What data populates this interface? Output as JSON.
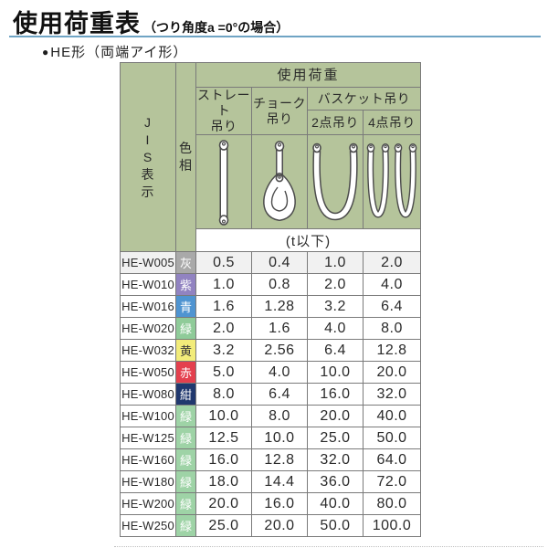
{
  "title": {
    "main": "使用荷重表",
    "sub": "（つり角度a =0°の場合）"
  },
  "section": {
    "bullet": "●",
    "label": "HE形（両端アイ形）"
  },
  "colors": {
    "header_green": "#b5c49b",
    "border_gray": "#7a7a7a",
    "title_rule_blue": "#6fa4c4",
    "first_row_bg": "#f1f1f1"
  },
  "table": {
    "jis_header_chars": [
      "J",
      "I",
      "S",
      "表",
      "示"
    ],
    "color_header_chars": [
      "色",
      "相"
    ],
    "load_header": "使用荷重",
    "sub_headers": {
      "straight_line1": "ストレート",
      "straight_line2": "吊り",
      "choker_line1": "チョーク",
      "choker_line2": "吊り",
      "basket": "バスケット吊り",
      "basket_2pt": "2点吊り",
      "basket_4pt": "4点吊り"
    },
    "unit_row": "(t以下)",
    "icons": [
      "straight-sling-icon",
      "choker-sling-icon",
      "basket-2pt-sling-icon",
      "basket-4pt-sling-icon"
    ],
    "rows": [
      {
        "jis": "HE-W005",
        "color_label": "灰",
        "color_hex": "#a9a9a9",
        "text_color": "#ffffff",
        "values": [
          "0.5",
          "0.4",
          "1.0",
          "2.0"
        ]
      },
      {
        "jis": "HE-W010",
        "color_label": "紫",
        "color_hex": "#9183c1",
        "text_color": "#ffffff",
        "values": [
          "1.0",
          "0.8",
          "2.0",
          "4.0"
        ]
      },
      {
        "jis": "HE-W016",
        "color_label": "青",
        "color_hex": "#4f94d1",
        "text_color": "#ffffff",
        "values": [
          "1.6",
          "1.28",
          "3.2",
          "6.4"
        ]
      },
      {
        "jis": "HE-W020",
        "color_label": "緑",
        "color_hex": "#8fcb99",
        "text_color": "#ffffff",
        "values": [
          "2.0",
          "1.6",
          "4.0",
          "8.0"
        ]
      },
      {
        "jis": "HE-W032",
        "color_label": "黄",
        "color_hex": "#f2ec7a",
        "text_color": "#3a3a3a",
        "values": [
          "3.2",
          "2.56",
          "6.4",
          "12.8"
        ]
      },
      {
        "jis": "HE-W050",
        "color_label": "赤",
        "color_hex": "#e4404e",
        "text_color": "#ffffff",
        "values": [
          "5.0",
          "4.0",
          "10.0",
          "20.0"
        ]
      },
      {
        "jis": "HE-W080",
        "color_label": "紺",
        "color_hex": "#20386e",
        "text_color": "#ffffff",
        "values": [
          "8.0",
          "6.4",
          "16.0",
          "32.0"
        ]
      },
      {
        "jis": "HE-W100",
        "color_label": "緑",
        "color_hex": "#9ed3a6",
        "text_color": "#ffffff",
        "values": [
          "10.0",
          "8.0",
          "20.0",
          "40.0"
        ]
      },
      {
        "jis": "HE-W125",
        "color_label": "緑",
        "color_hex": "#9ed3a6",
        "text_color": "#ffffff",
        "values": [
          "12.5",
          "10.0",
          "25.0",
          "50.0"
        ]
      },
      {
        "jis": "HE-W160",
        "color_label": "緑",
        "color_hex": "#9ed3a6",
        "text_color": "#ffffff",
        "values": [
          "16.0",
          "12.8",
          "32.0",
          "64.0"
        ]
      },
      {
        "jis": "HE-W180",
        "color_label": "緑",
        "color_hex": "#9ed3a6",
        "text_color": "#ffffff",
        "values": [
          "18.0",
          "14.4",
          "36.0",
          "72.0"
        ]
      },
      {
        "jis": "HE-W200",
        "color_label": "緑",
        "color_hex": "#9ed3a6",
        "text_color": "#ffffff",
        "values": [
          "20.0",
          "16.0",
          "40.0",
          "80.0"
        ]
      },
      {
        "jis": "HE-W250",
        "color_label": "緑",
        "color_hex": "#9ed3a6",
        "text_color": "#ffffff",
        "values": [
          "25.0",
          "20.0",
          "50.0",
          "100.0"
        ]
      }
    ]
  }
}
